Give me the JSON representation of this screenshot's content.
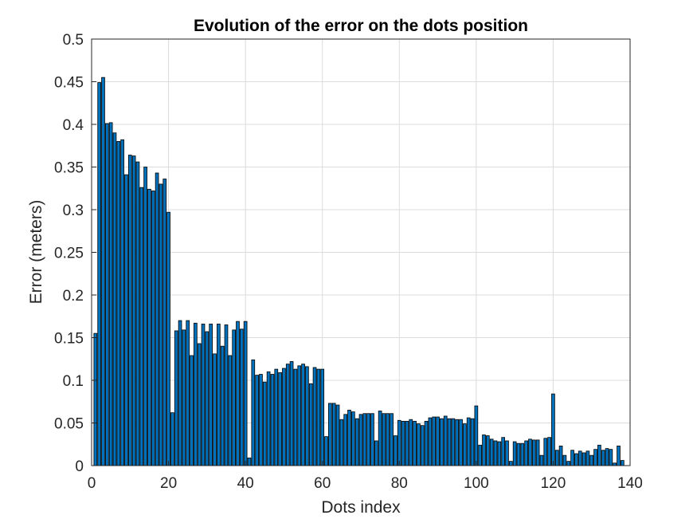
{
  "chart_data": {
    "type": "bar",
    "title": "Evolution of the error on the dots position",
    "xlabel": "Dots index",
    "ylabel": "Error (meters)",
    "xlim": [
      0,
      140
    ],
    "ylim": [
      0,
      0.5
    ],
    "xticks": [
      "0",
      "20",
      "40",
      "60",
      "80",
      "100",
      "120",
      "140"
    ],
    "yticks": [
      "0",
      "0.05",
      "0.1",
      "0.15",
      "0.2",
      "0.25",
      "0.3",
      "0.35",
      "0.4",
      "0.45",
      "0.5"
    ],
    "grid": true,
    "bar_color": "#0072BD",
    "edge_color": "#000000",
    "x": [
      1,
      2,
      3,
      4,
      5,
      6,
      7,
      8,
      9,
      10,
      11,
      12,
      13,
      14,
      15,
      16,
      17,
      18,
      19,
      20,
      21,
      22,
      23,
      24,
      25,
      26,
      27,
      28,
      29,
      30,
      31,
      32,
      33,
      34,
      35,
      36,
      37,
      38,
      39,
      40,
      41,
      42,
      43,
      44,
      45,
      46,
      47,
      48,
      49,
      50,
      51,
      52,
      53,
      54,
      55,
      56,
      57,
      58,
      59,
      60,
      61,
      62,
      63,
      64,
      65,
      66,
      67,
      68,
      69,
      70,
      71,
      72,
      73,
      74,
      75,
      76,
      77,
      78,
      79,
      80,
      81,
      82,
      83,
      84,
      85,
      86,
      87,
      88,
      89,
      90,
      91,
      92,
      93,
      94,
      95,
      96,
      97,
      98,
      99,
      100,
      101,
      102,
      103,
      104,
      105,
      106,
      107,
      108,
      109,
      110,
      111,
      112,
      113,
      114,
      115,
      116,
      117,
      118,
      119,
      120,
      121,
      122,
      123,
      124,
      125,
      126,
      127,
      128,
      129,
      130,
      131,
      132,
      133,
      134,
      135,
      136,
      137,
      138,
      139
    ],
    "values": [
      0.155,
      0.449,
      0.455,
      0.401,
      0.402,
      0.39,
      0.38,
      0.382,
      0.341,
      0.364,
      0.363,
      0.356,
      0.326,
      0.35,
      0.324,
      0.322,
      0.343,
      0.33,
      0.336,
      0.297,
      0.062,
      0.158,
      0.17,
      0.159,
      0.17,
      0.129,
      0.167,
      0.143,
      0.166,
      0.157,
      0.166,
      0.131,
      0.166,
      0.14,
      0.165,
      0.129,
      0.159,
      0.169,
      0.16,
      0.169,
      0.009,
      0.124,
      0.106,
      0.107,
      0.098,
      0.11,
      0.107,
      0.113,
      0.109,
      0.114,
      0.119,
      0.122,
      0.113,
      0.117,
      0.119,
      0.116,
      0.096,
      0.115,
      0.113,
      0.113,
      0.034,
      0.073,
      0.073,
      0.071,
      0.054,
      0.06,
      0.065,
      0.063,
      0.055,
      0.06,
      0.061,
      0.061,
      0.061,
      0.029,
      0.064,
      0.061,
      0.061,
      0.061,
      0.035,
      0.053,
      0.052,
      0.052,
      0.054,
      0.052,
      0.049,
      0.047,
      0.052,
      0.056,
      0.057,
      0.057,
      0.055,
      0.058,
      0.055,
      0.055,
      0.054,
      0.054,
      0.049,
      0.056,
      0.055,
      0.07,
      0.024,
      0.036,
      0.035,
      0.031,
      0.029,
      0.028,
      0.033,
      0.029,
      0.005,
      0.028,
      0.026,
      0.026,
      0.029,
      0.031,
      0.03,
      0.03,
      0.012,
      0.032,
      0.033,
      0.084,
      0.018,
      0.023,
      0.012,
      0.005,
      0.018,
      0.014,
      0.017,
      0.015,
      0.017,
      0.012,
      0.019,
      0.024,
      0.018,
      0.02,
      0.019,
      0.003,
      0.023,
      0.006,
      0.0
    ]
  }
}
